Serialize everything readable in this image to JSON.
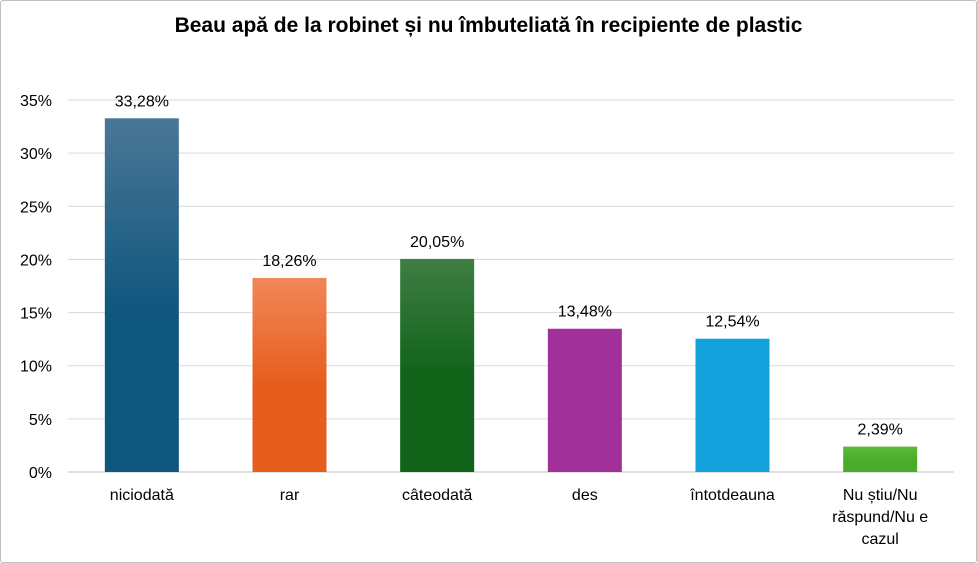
{
  "chart_data": {
    "type": "bar",
    "title": "Beau apă de la robinet și nu îmbuteliată în recipiente de plastic",
    "categories": [
      "niciodată",
      "rar",
      "câteodată",
      "des",
      "întotdeauna",
      "Nu știu/Nu răspund/Nu e cazul"
    ],
    "category_lines": [
      [
        "niciodată"
      ],
      [
        "rar"
      ],
      [
        "câteodată"
      ],
      [
        "des"
      ],
      [
        "întotdeauna"
      ],
      [
        "Nu știu/Nu",
        "răspund/Nu e",
        "cazul"
      ]
    ],
    "values": [
      33.28,
      18.26,
      20.05,
      13.48,
      12.54,
      2.39
    ],
    "data_labels": [
      "33,28%",
      "18,26%",
      "20,05%",
      "13,48%",
      "12,54%",
      "2,39%"
    ],
    "ylim": [
      0,
      35
    ],
    "yticks": [
      0,
      5,
      10,
      15,
      20,
      25,
      30,
      35
    ],
    "ytick_labels": [
      "0%",
      "5%",
      "10%",
      "15%",
      "20%",
      "25%",
      "30%",
      "35%"
    ],
    "xlabel": "",
    "ylabel": "",
    "grid": true,
    "legend": "none",
    "colors": [
      [
        "#4a7796",
        "#0f567e"
      ],
      [
        "#f1875a",
        "#e65e1c"
      ],
      [
        "#3f7e44",
        "#106319"
      ],
      [
        "#a1309a",
        "#a1309a"
      ],
      [
        "#14a2dc",
        "#14a2dc"
      ],
      [
        "#5cb935",
        "#4aac2a"
      ]
    ]
  }
}
